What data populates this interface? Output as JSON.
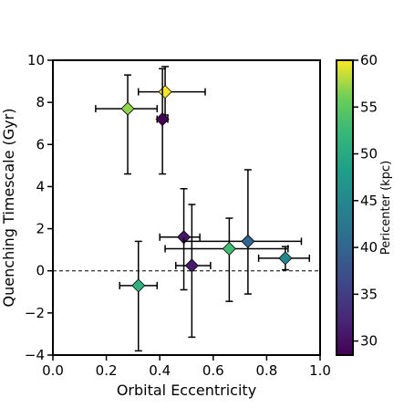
{
  "chart_data": {
    "type": "scatter",
    "title": "",
    "xlabel": "Orbital Eccentricity",
    "ylabel": "Quenching Timescale (Gyr)",
    "xlim": [
      0.0,
      1.0
    ],
    "ylim": [
      -4,
      10
    ],
    "xticks": [
      "0.0",
      "0.2",
      "0.4",
      "0.6",
      "0.8",
      "1.0"
    ],
    "yticks": [
      "−4",
      "−2",
      "0",
      "2",
      "4",
      "6",
      "8",
      "10"
    ],
    "reference_line": {
      "y": 0,
      "style": "dashed"
    },
    "grid": false,
    "marker": "diamond",
    "colorbar": {
      "label": "Pericenter (kpc)",
      "range": [
        28.5,
        60.0
      ],
      "colormap": "viridis",
      "ticks": [
        "30",
        "35",
        "40",
        "45",
        "50",
        "55",
        "60"
      ]
    },
    "points": [
      {
        "x": 0.28,
        "y": 7.7,
        "xerr": [
          0.12,
          0.11
        ],
        "yerr": [
          3.1,
          1.6
        ],
        "c": 57
      },
      {
        "x": 0.42,
        "y": 8.5,
        "xerr": [
          0.1,
          0.15
        ],
        "yerr": [
          1.1,
          1.2
        ],
        "c": 60
      },
      {
        "x": 0.41,
        "y": 7.2,
        "xerr": [
          0.02,
          0.02
        ],
        "yerr": [
          2.6,
          2.4
        ],
        "c": 28.5
      },
      {
        "x": 0.32,
        "y": -0.7,
        "xerr": [
          0.07,
          0.07
        ],
        "yerr": [
          3.1,
          2.1
        ],
        "c": 51
      },
      {
        "x": 0.49,
        "y": 1.6,
        "xerr": [
          0.09,
          0.06
        ],
        "yerr": [
          2.5,
          2.3
        ],
        "c": 30.5
      },
      {
        "x": 0.52,
        "y": 0.25,
        "xerr": [
          0.06,
          0.07
        ],
        "yerr": [
          3.4,
          2.9
        ],
        "c": 31
      },
      {
        "x": 0.66,
        "y": 1.05,
        "xerr": [
          0.24,
          0.22
        ],
        "yerr": [
          2.5,
          1.45
        ],
        "c": 53
      },
      {
        "x": 0.73,
        "y": 1.4,
        "xerr": [
          0.24,
          0.2
        ],
        "yerr": [
          2.5,
          3.4
        ],
        "c": 40
      },
      {
        "x": 0.87,
        "y": 0.6,
        "xerr": [
          0.1,
          0.09
        ],
        "yerr": [
          0.55,
          0.55
        ],
        "c": 45
      }
    ]
  }
}
